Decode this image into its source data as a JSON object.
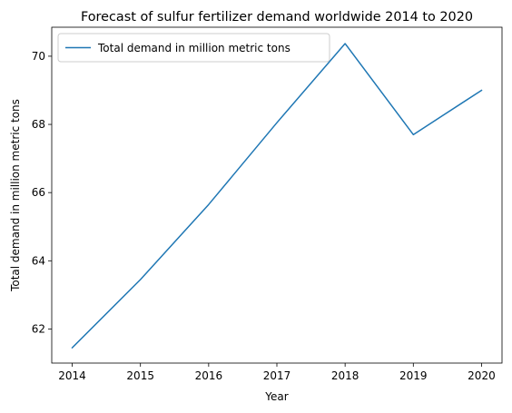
{
  "chart_data": {
    "type": "line",
    "title": "Forecast of sulfur fertilizer demand worldwide 2014 to 2020",
    "xlabel": "Year",
    "ylabel": "Total demand in million metric tons",
    "x": [
      2014,
      2015,
      2016,
      2017,
      2018,
      2019,
      2020
    ],
    "series": [
      {
        "name": "Total demand in million metric tons",
        "values": [
          61.45,
          63.45,
          65.65,
          68.05,
          70.37,
          67.7,
          69.0
        ],
        "color": "#1f77b4"
      }
    ],
    "x_ticks": [
      "2014",
      "2015",
      "2016",
      "2017",
      "2018",
      "2019",
      "2020"
    ],
    "y_ticks": [
      "62",
      "64",
      "66",
      "68",
      "70"
    ],
    "xlim": [
      2013.7,
      2020.3
    ],
    "ylim": [
      61.0,
      70.85
    ],
    "grid": false,
    "legend_position": "top-left"
  }
}
